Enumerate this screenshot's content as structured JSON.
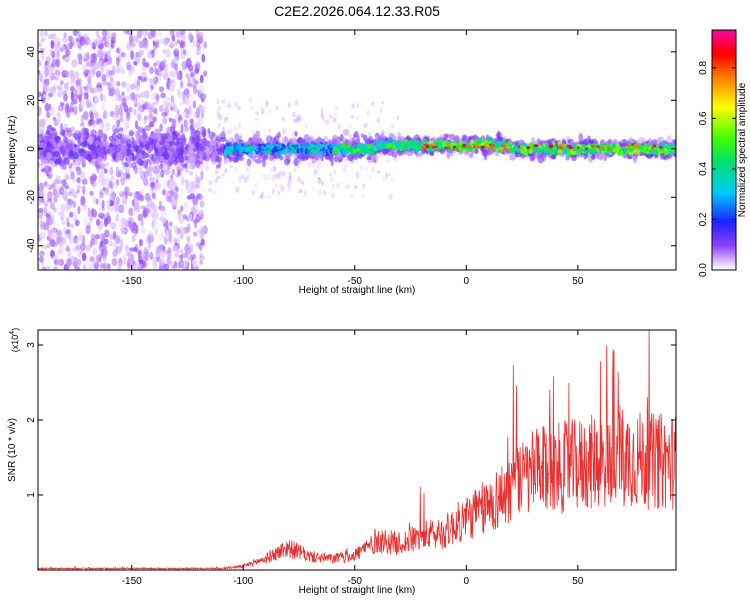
{
  "title": "C2E2.2026.064.12.33.R05",
  "chart_data": [
    {
      "type": "heatmap",
      "xlabel": "Height of straight line (km)",
      "ylabel": "Frequency (Hz)",
      "xlim": [
        -192,
        94
      ],
      "ylim": [
        -50,
        49
      ],
      "xticks": [
        -150,
        -100,
        -50,
        0,
        50
      ],
      "xtick_labels": [
        "-150",
        "-100",
        "-50",
        "0",
        "50"
      ],
      "yticks": [
        40,
        20,
        0,
        -20,
        -40
      ],
      "ytick_labels": [
        "40",
        "20",
        "0",
        "-20",
        "-40"
      ],
      "colorbar": {
        "label": "Normalized spectral amplitude",
        "range": [
          0,
          0.95
        ],
        "ticks": [
          0.0,
          0.2,
          0.4,
          0.6,
          0.8
        ],
        "tick_labels": [
          "0.0",
          "0.2",
          "0.4",
          "0.6",
          "0.8"
        ],
        "colors": [
          "#ffffff",
          "#c8a0ff",
          "#7000e0",
          "#2020ff",
          "#00d0ff",
          "#00e080",
          "#40ff00",
          "#ffff00",
          "#ff8000",
          "#ff0000",
          "#ff00a0"
        ]
      },
      "description": {
        "signal_band_center_hz": 0,
        "noisy_region_km": [
          -192,
          -120
        ]
      }
    },
    {
      "type": "line",
      "xlabel": "Height of straight line (km)",
      "ylabel": "SNR (10 * v/v)",
      "scale_label": "(x10",
      "scale_exponent": "4",
      "series_color": "#e83030",
      "xlim": [
        -192,
        94
      ],
      "ylim": [
        0,
        3.2
      ],
      "xticks": [
        -150,
        -100,
        -50,
        0,
        50
      ],
      "xtick_labels": [
        "-150",
        "-100",
        "-50",
        "0",
        "50"
      ],
      "yticks": [
        1,
        2,
        3
      ],
      "ytick_labels": [
        "1",
        "2",
        "3"
      ],
      "trend": {
        "x": [
          -192,
          -110,
          -100,
          -90,
          -80,
          -70,
          -60,
          -50,
          -40,
          -30,
          -20,
          -10,
          0,
          10,
          20,
          30,
          40,
          50,
          60,
          70,
          80,
          94
        ],
        "y": [
          0.02,
          0.02,
          0.05,
          0.15,
          0.3,
          0.18,
          0.15,
          0.2,
          0.4,
          0.35,
          0.45,
          0.5,
          0.7,
          0.85,
          1.1,
          1.3,
          1.35,
          1.4,
          1.45,
          1.55,
          1.45,
          1.45
        ]
      }
    }
  ]
}
